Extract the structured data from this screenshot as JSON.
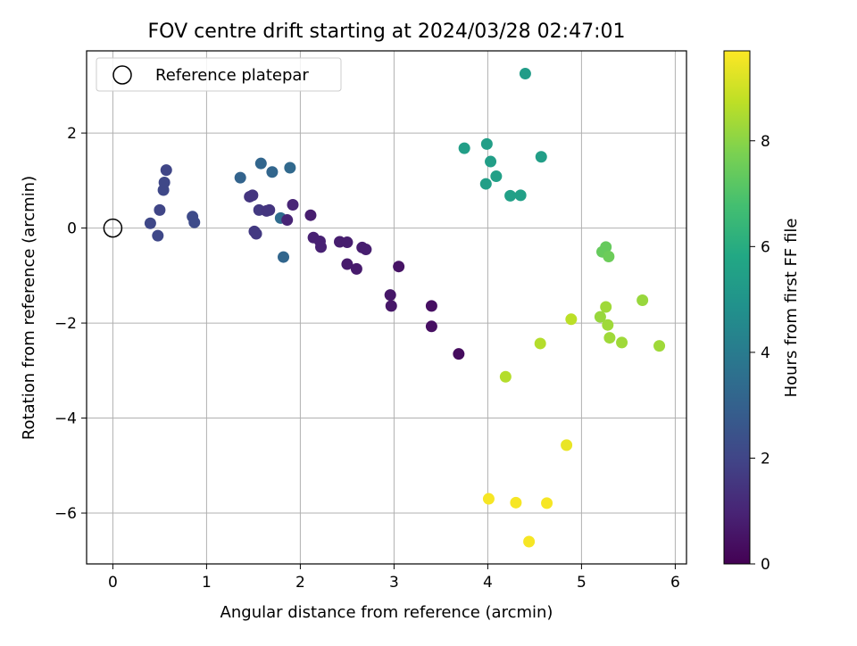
{
  "chart_data": {
    "type": "scatter",
    "title": "FOV centre drift starting at 2024/03/28 02:47:01",
    "xlabel": "Angular distance from reference (arcmin)",
    "ylabel": "Rotation from reference (arcmin)",
    "colorbar_label": "Hours from first FF file",
    "xlim": [
      -0.28,
      6.12
    ],
    "ylim": [
      -7.07,
      3.73
    ],
    "x_ticks": [
      0,
      1,
      2,
      3,
      4,
      5,
      6
    ],
    "y_ticks": [
      -6,
      -4,
      -2,
      0,
      2
    ],
    "colorbar_range": [
      0,
      9.7
    ],
    "colorbar_ticks": [
      0,
      2,
      4,
      6,
      8
    ],
    "colormap": "viridis",
    "grid": true,
    "legend_position": "top-left",
    "legend": {
      "label": "Reference platepar",
      "marker": "open-circle"
    },
    "reference_point": {
      "x": 0,
      "y": 0
    },
    "points": [
      {
        "x": 0.4,
        "y": 0.1,
        "h": 2.1
      },
      {
        "x": 0.48,
        "y": -0.16,
        "h": 2.1
      },
      {
        "x": 0.5,
        "y": 0.38,
        "h": 2.0
      },
      {
        "x": 0.54,
        "y": 0.8,
        "h": 2.1
      },
      {
        "x": 0.55,
        "y": 0.96,
        "h": 2.1
      },
      {
        "x": 0.57,
        "y": 1.22,
        "h": 2.0
      },
      {
        "x": 0.85,
        "y": 0.24,
        "h": 2.2
      },
      {
        "x": 0.87,
        "y": 0.12,
        "h": 2.2
      },
      {
        "x": 1.36,
        "y": 1.06,
        "h": 3.1
      },
      {
        "x": 1.46,
        "y": 0.66,
        "h": 1.5
      },
      {
        "x": 1.49,
        "y": 0.69,
        "h": 1.5
      },
      {
        "x": 1.51,
        "y": -0.07,
        "h": 1.6
      },
      {
        "x": 1.53,
        "y": -0.12,
        "h": 1.6
      },
      {
        "x": 1.56,
        "y": 0.38,
        "h": 1.6
      },
      {
        "x": 1.58,
        "y": 1.36,
        "h": 3.2
      },
      {
        "x": 1.64,
        "y": 0.36,
        "h": 1.5
      },
      {
        "x": 1.67,
        "y": 0.38,
        "h": 1.5
      },
      {
        "x": 1.7,
        "y": 1.18,
        "h": 3.2
      },
      {
        "x": 1.79,
        "y": 0.21,
        "h": 3.4
      },
      {
        "x": 1.82,
        "y": -0.61,
        "h": 3.2
      },
      {
        "x": 1.86,
        "y": 0.17,
        "h": 1.0
      },
      {
        "x": 1.89,
        "y": 1.27,
        "h": 3.3
      },
      {
        "x": 1.92,
        "y": 0.49,
        "h": 1.0
      },
      {
        "x": 2.11,
        "y": 0.27,
        "h": 0.8
      },
      {
        "x": 2.14,
        "y": -0.2,
        "h": 0.9
      },
      {
        "x": 2.21,
        "y": -0.28,
        "h": 0.9
      },
      {
        "x": 2.22,
        "y": -0.4,
        "h": 0.9
      },
      {
        "x": 2.42,
        "y": -0.29,
        "h": 0.8
      },
      {
        "x": 2.5,
        "y": -0.3,
        "h": 0.8
      },
      {
        "x": 2.5,
        "y": -0.76,
        "h": 0.7
      },
      {
        "x": 2.6,
        "y": -0.86,
        "h": 0.7
      },
      {
        "x": 2.66,
        "y": -0.41,
        "h": 0.8
      },
      {
        "x": 2.7,
        "y": -0.45,
        "h": 0.8
      },
      {
        "x": 2.96,
        "y": -1.41,
        "h": 0.6
      },
      {
        "x": 2.97,
        "y": -1.64,
        "h": 0.6
      },
      {
        "x": 3.05,
        "y": -0.81,
        "h": 0.5
      },
      {
        "x": 3.4,
        "y": -1.64,
        "h": 0.4
      },
      {
        "x": 3.4,
        "y": -2.07,
        "h": 0.4
      },
      {
        "x": 3.69,
        "y": -2.65,
        "h": 0.3
      },
      {
        "x": 3.75,
        "y": 1.68,
        "h": 5.4
      },
      {
        "x": 3.98,
        "y": 0.93,
        "h": 5.4
      },
      {
        "x": 3.99,
        "y": 1.77,
        "h": 5.4
      },
      {
        "x": 4.03,
        "y": 1.4,
        "h": 5.4
      },
      {
        "x": 4.09,
        "y": 1.09,
        "h": 5.5
      },
      {
        "x": 4.24,
        "y": 0.68,
        "h": 5.5
      },
      {
        "x": 4.35,
        "y": 0.69,
        "h": 5.5
      },
      {
        "x": 4.4,
        "y": 3.25,
        "h": 5.3
      },
      {
        "x": 4.57,
        "y": 1.5,
        "h": 5.4
      },
      {
        "x": 4.19,
        "y": -3.13,
        "h": 8.6
      },
      {
        "x": 4.56,
        "y": -2.43,
        "h": 8.6
      },
      {
        "x": 4.89,
        "y": -1.92,
        "h": 8.7
      },
      {
        "x": 5.2,
        "y": -1.87,
        "h": 8.2
      },
      {
        "x": 5.22,
        "y": -0.5,
        "h": 7.4
      },
      {
        "x": 5.26,
        "y": -0.4,
        "h": 7.4
      },
      {
        "x": 5.26,
        "y": -1.66,
        "h": 8.3
      },
      {
        "x": 5.28,
        "y": -2.04,
        "h": 8.3
      },
      {
        "x": 5.29,
        "y": -0.6,
        "h": 7.5
      },
      {
        "x": 5.3,
        "y": -2.31,
        "h": 8.3
      },
      {
        "x": 5.43,
        "y": -2.41,
        "h": 8.3
      },
      {
        "x": 5.65,
        "y": -1.52,
        "h": 8.2
      },
      {
        "x": 5.83,
        "y": -2.48,
        "h": 8.3
      },
      {
        "x": 4.01,
        "y": -5.7,
        "h": 9.6
      },
      {
        "x": 4.3,
        "y": -5.78,
        "h": 9.6
      },
      {
        "x": 4.44,
        "y": -6.6,
        "h": 9.6
      },
      {
        "x": 4.63,
        "y": -5.79,
        "h": 9.6
      },
      {
        "x": 4.84,
        "y": -4.57,
        "h": 9.4
      }
    ]
  }
}
